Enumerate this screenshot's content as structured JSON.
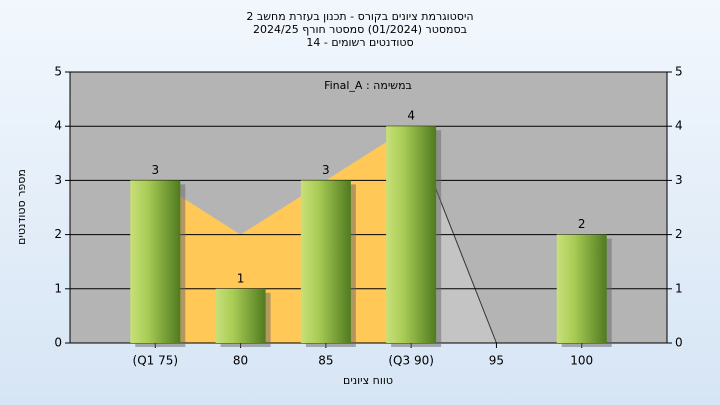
{
  "chart_data": {
    "type": "bar",
    "title": [
      "היסטוגרמת ציונים בקורס - תכנון בעזרת מחשב 2",
      "בסמסטר  (01/2024)  סמסטר חורף 2024/25",
      "סטודנטים רשומים - 14"
    ],
    "annotation": "Final_A : במשימה",
    "x_label": "טווח ציונים",
    "y_label": "מספר סטודנטים",
    "categories": [
      "(Q1 75)",
      "80",
      "85",
      "(Q3 90)",
      "95",
      "100"
    ],
    "values": [
      3,
      1,
      3,
      4,
      0,
      2
    ],
    "color": "#8fb63a",
    "area": {
      "values": [
        3,
        2,
        3,
        4,
        0,
        null
      ],
      "color": "#ffc857",
      "tail_color": "#c4c4c4"
    },
    "ylim": [
      0,
      5
    ],
    "yticks": [
      0,
      1,
      2,
      3,
      4,
      5
    ],
    "grid": true
  }
}
